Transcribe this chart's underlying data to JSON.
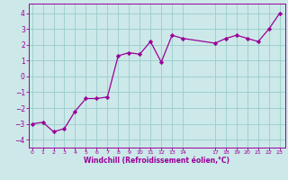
{
  "x": [
    0,
    1,
    2,
    3,
    4,
    5,
    6,
    7,
    8,
    9,
    10,
    11,
    12,
    13,
    14,
    17,
    18,
    19,
    20,
    21,
    22,
    23
  ],
  "y": [
    -3.0,
    -2.9,
    -3.5,
    -3.3,
    -2.2,
    -1.4,
    -1.4,
    -1.3,
    1.3,
    1.5,
    1.4,
    2.2,
    0.9,
    2.6,
    2.4,
    2.1,
    2.4,
    2.6,
    2.4,
    2.2,
    3.0,
    4.0
  ],
  "line_color": "#990099",
  "marker_color": "#990099",
  "bg_color": "#cce8e8",
  "grid_color": "#99cccc",
  "xlabel": "Windchill (Refroidissement éolien,°C)",
  "xlabel_color": "#990099",
  "xticks": [
    0,
    1,
    2,
    3,
    4,
    5,
    6,
    7,
    8,
    9,
    10,
    11,
    12,
    13,
    14,
    17,
    18,
    19,
    20,
    21,
    22,
    23
  ],
  "yticks": [
    -4,
    -3,
    -2,
    -1,
    0,
    1,
    2,
    3,
    4
  ],
  "xlim": [
    -0.3,
    23.5
  ],
  "ylim": [
    -4.5,
    4.6
  ],
  "tick_color": "#990099",
  "spine_color": "#990099"
}
